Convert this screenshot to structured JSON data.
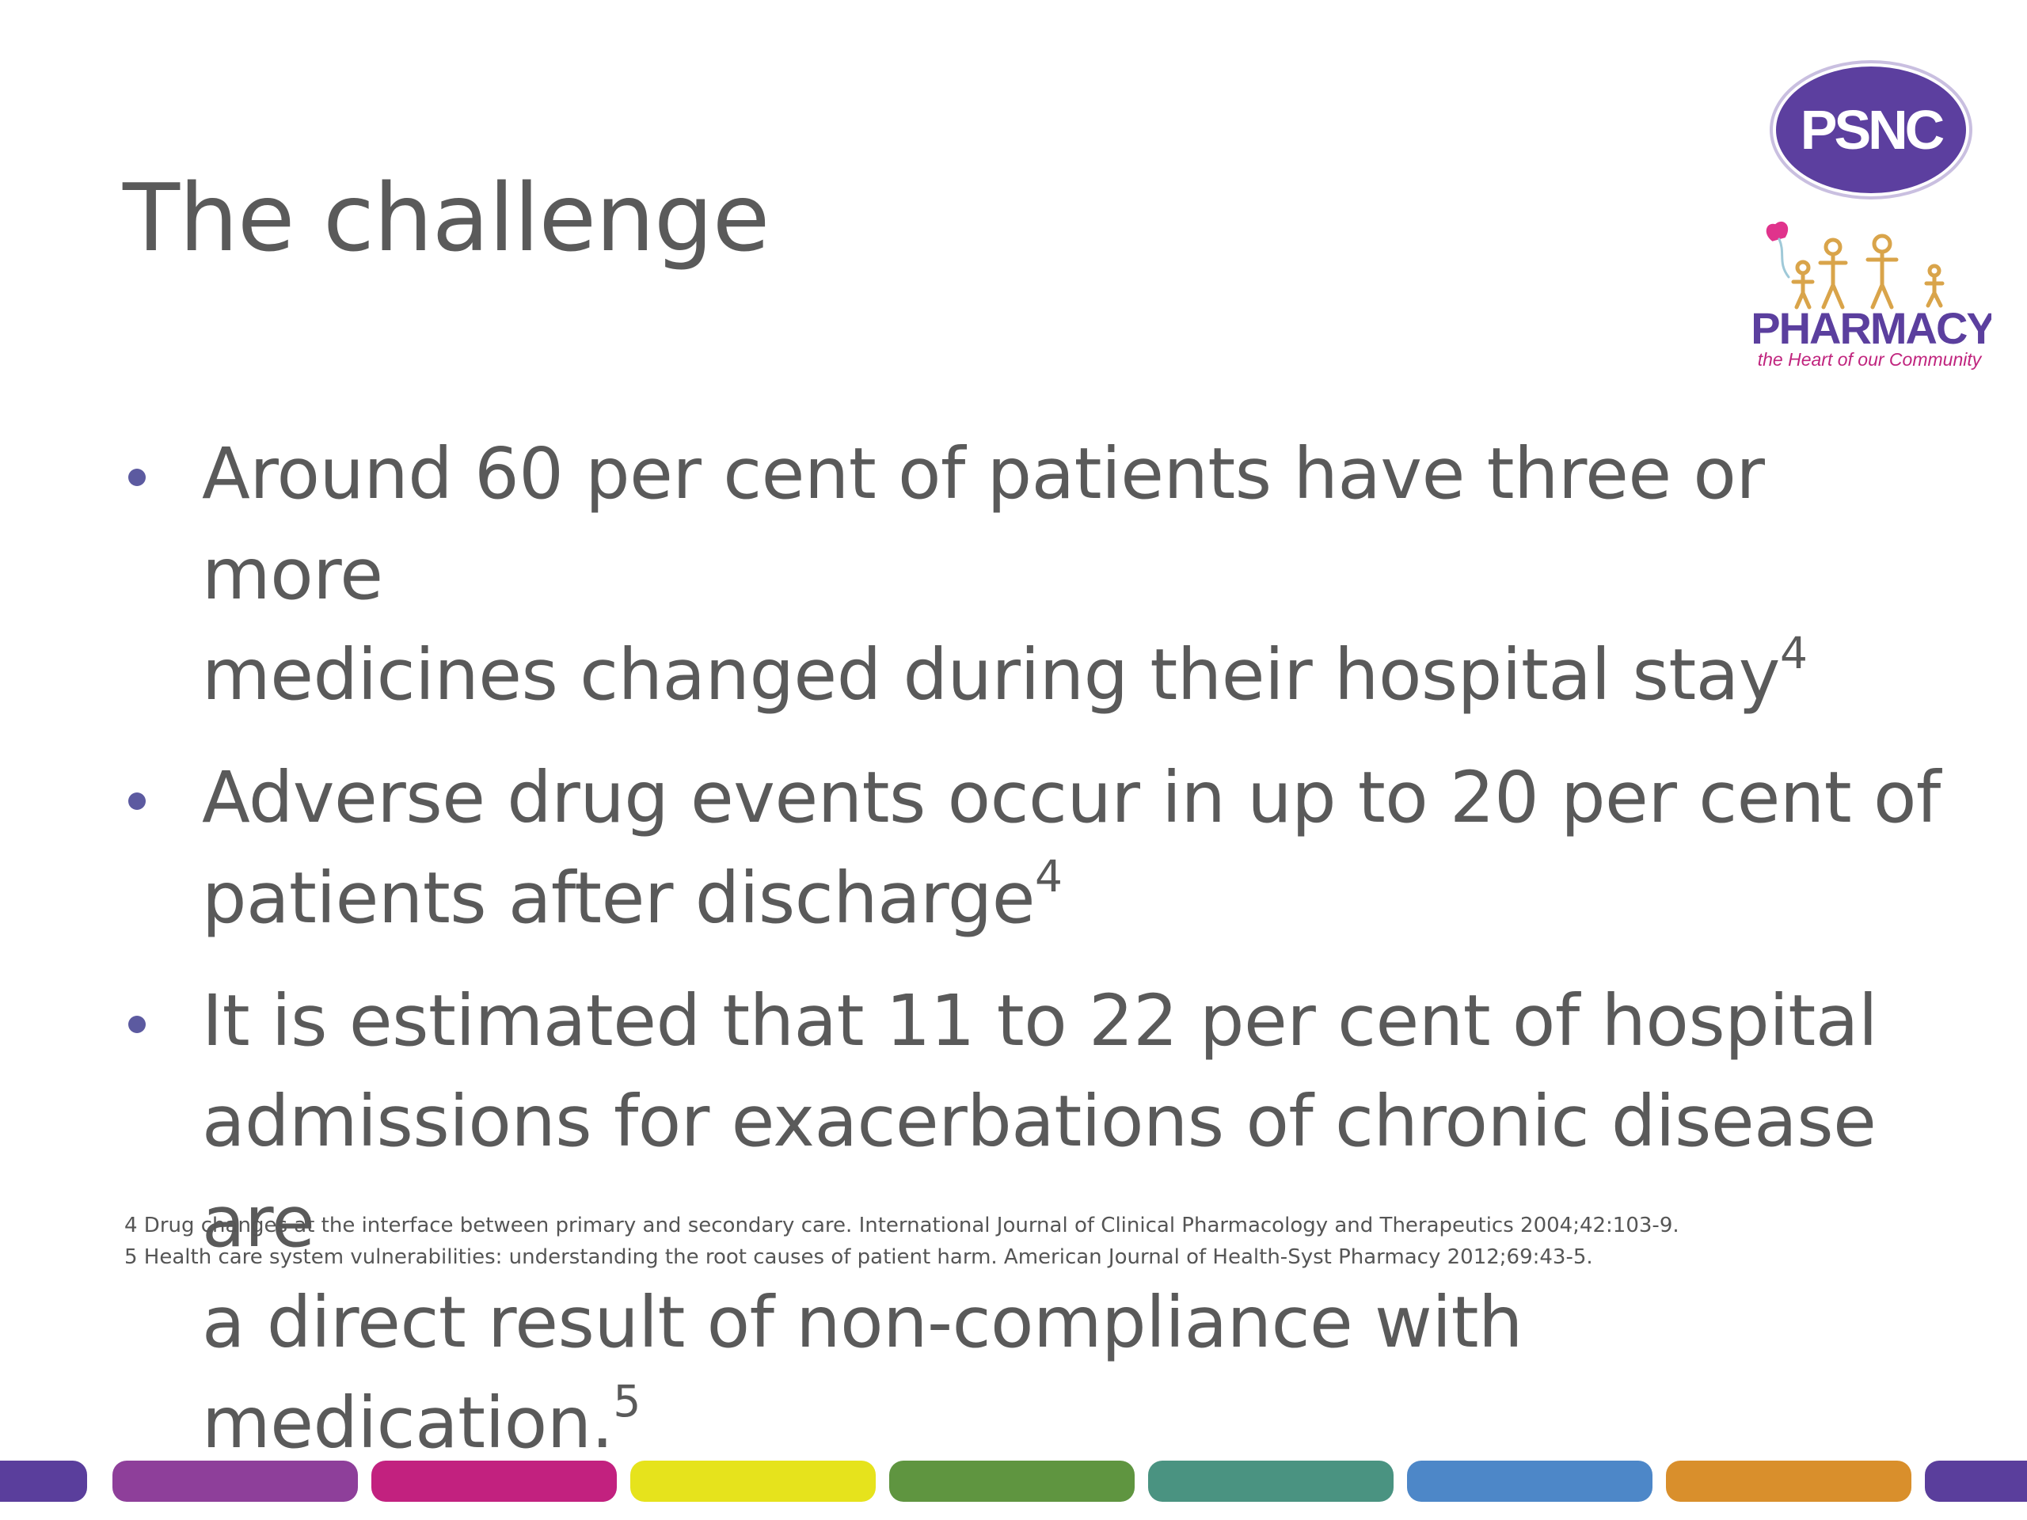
{
  "slide": {
    "title": "The challenge"
  },
  "logo": {
    "badge_text": "PSNC",
    "wordmark": "PHARMACY",
    "tagline": "the Heart of our Community",
    "colors": {
      "badge_purple": "#5c3f9f",
      "wordmark_purple": "#5b3f9e",
      "tagline_magenta": "#c0247e",
      "figures_gold": "#d9a44a",
      "balloon_pink": "#e0338c"
    }
  },
  "bullets": [
    {
      "line1": "Around 60 per cent of patients have three or more",
      "line2": "medicines changed during their hospital stay",
      "sup": "4"
    },
    {
      "line1": "Adverse drug events occur in up to 20 per cent of",
      "line2": "patients after discharge",
      "sup": "4"
    },
    {
      "line1": "It is estimated that 11 to 22 per cent of hospital",
      "line2": "admissions for exacerbations of chronic disease are",
      "line3": "a direct result of non-compliance with medication.",
      "sup": "5"
    }
  ],
  "references": [
    "4 Drug changes at the interface between primary and secondary care. International Journal of Clinical Pharmacology and Therapeutics 2004;42:103-9.",
    "5 Health care system vulnerabilities: understanding the root causes of patient harm. American Journal of Health-Syst Pharmacy 2012;69:43-5."
  ],
  "stripe_colors": [
    "#5a3e9c",
    "#8e3f9a",
    "#c2217f",
    "#e6e31c",
    "#5f9540",
    "#4a9381",
    "#4d87c8",
    "#d98f2c",
    "#5a3e9c"
  ],
  "bullet_color": "#5c5aa0"
}
